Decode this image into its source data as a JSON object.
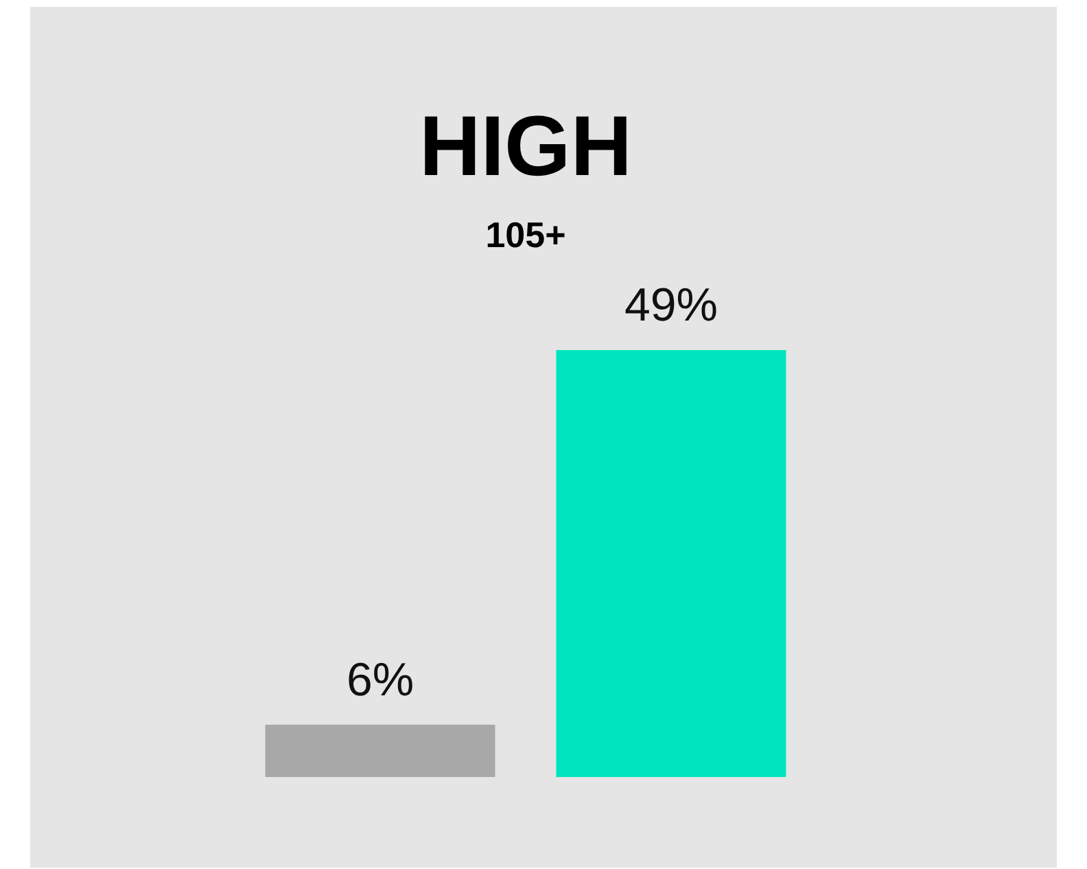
{
  "chart_data": {
    "type": "bar",
    "title": "HIGH",
    "subtitle": "105+",
    "categories": [
      null,
      null
    ],
    "values": [
      6,
      49
    ],
    "colors": [
      "#a8a8a8",
      "#00e5bd"
    ],
    "value_labels": [
      "6%",
      "49%"
    ],
    "legend": false
  }
}
